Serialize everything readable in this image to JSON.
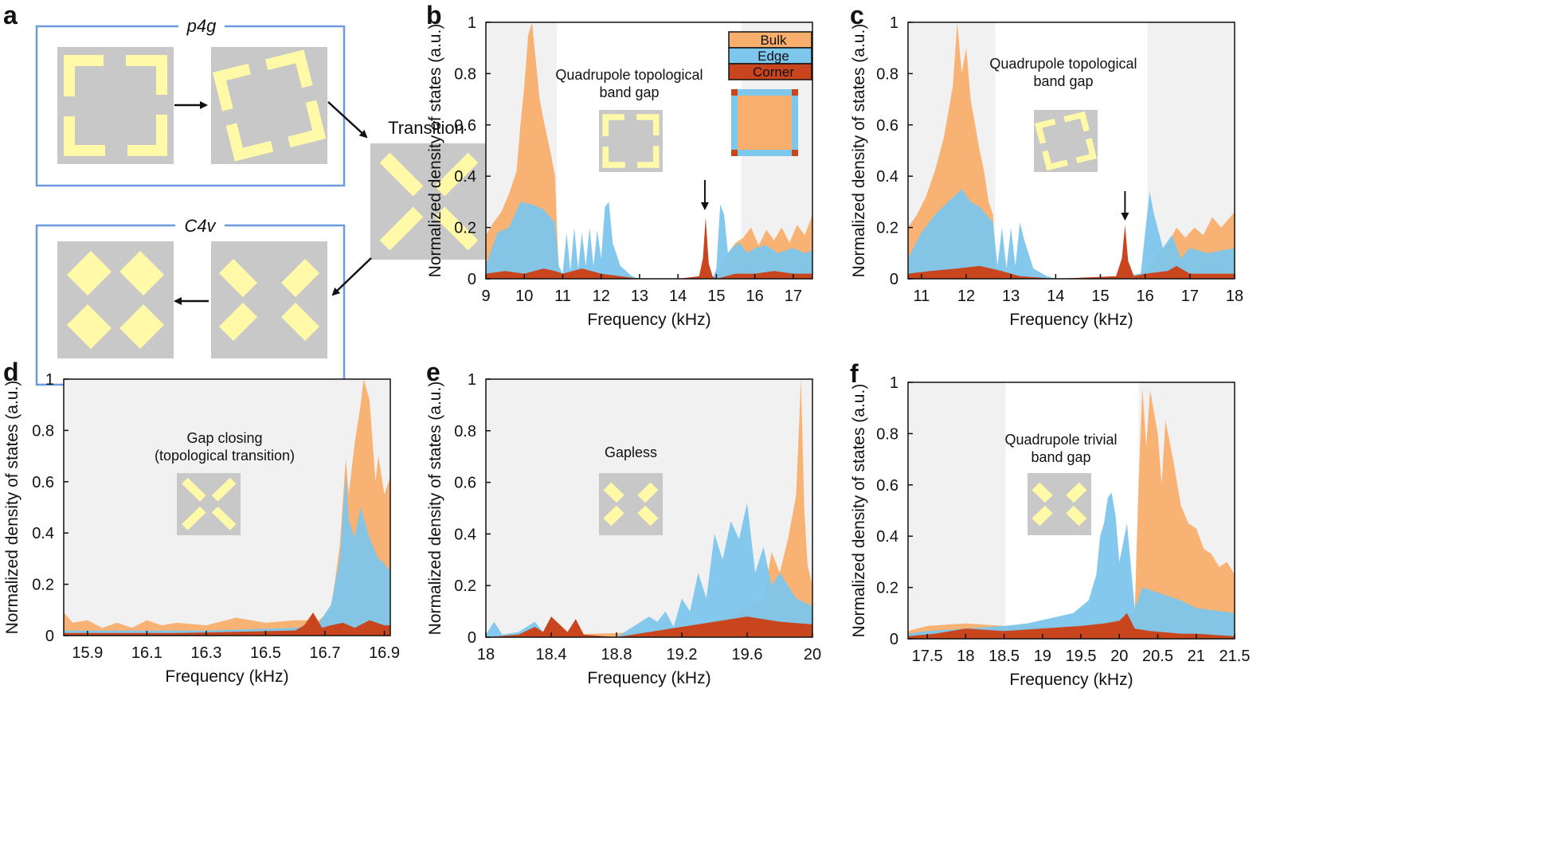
{
  "colors": {
    "bulk": "#F8AE6C",
    "edge": "#7DC6EC",
    "corner": "#C9451E",
    "shade": "#F1F1F1",
    "cellbg": "#C8C8C8",
    "rod": "#FFF9A8",
    "frame": "#6B9BE0",
    "shadeDark": "#E6E6E6"
  },
  "panel_a": {
    "letter": "a",
    "top_group_label": "p4g",
    "bottom_group_label": "C4v",
    "transition_label": "Transition"
  },
  "chart_data": [
    {
      "panel": "b",
      "type": "area",
      "xlabel": "Frequency (kHz)",
      "ylabel": "Normalized density of states (a.u.)",
      "xlim": [
        9,
        17.5
      ],
      "ylim": [
        0,
        1
      ],
      "xticks": [
        "9",
        "10",
        "11",
        "12",
        "13",
        "14",
        "15",
        "16",
        "17"
      ],
      "yticks": [
        "0",
        "0.2",
        "0.4",
        "0.6",
        "0.8",
        "1"
      ],
      "shaded": [
        [
          9,
          10.85
        ],
        [
          15.65,
          17.5
        ]
      ],
      "annotation": [
        "Quadrupole topological",
        "band gap"
      ],
      "legend": [
        "Bulk",
        "Edge",
        "Corner"
      ],
      "arrow_x": 14.7,
      "series": [
        {
          "name": "Bulk",
          "x": [
            9,
            9.2,
            9.4,
            9.6,
            9.8,
            9.9,
            10,
            10.1,
            10.2,
            10.3,
            10.4,
            10.5,
            10.6,
            10.7,
            10.8,
            10.85,
            10.9,
            11,
            12,
            13,
            14,
            15,
            15.3,
            15.5,
            15.7,
            15.9,
            16.1,
            16.3,
            16.5,
            16.7,
            16.9,
            17.1,
            17.3,
            17.5
          ],
          "values": [
            0.17,
            0.22,
            0.26,
            0.33,
            0.42,
            0.6,
            0.75,
            0.95,
            1.0,
            0.85,
            0.7,
            0.62,
            0.55,
            0.48,
            0.4,
            0.2,
            0.03,
            0,
            0,
            0,
            0,
            0,
            0.1,
            0.14,
            0.16,
            0.2,
            0.13,
            0.19,
            0.15,
            0.2,
            0.14,
            0.21,
            0.17,
            0.25
          ]
        },
        {
          "name": "Edge",
          "x": [
            9,
            9.3,
            9.6,
            9.9,
            10.2,
            10.5,
            10.8,
            10.9,
            11,
            11.1,
            11.2,
            11.3,
            11.4,
            11.5,
            11.6,
            11.7,
            11.8,
            11.9,
            12,
            12.1,
            12.2,
            12.3,
            12.5,
            12.8,
            13,
            14,
            14.9,
            15.0,
            15.1,
            15.2,
            15.3,
            15.4,
            15.6,
            15.8,
            16,
            16.3,
            16.6,
            17,
            17.3,
            17.5
          ],
          "values": [
            0.05,
            0.18,
            0.2,
            0.3,
            0.29,
            0.27,
            0.22,
            0.05,
            0.02,
            0.18,
            0.03,
            0.2,
            0.04,
            0.18,
            0.05,
            0.2,
            0.05,
            0.19,
            0.08,
            0.28,
            0.3,
            0.14,
            0.05,
            0.01,
            0,
            0,
            0,
            0.04,
            0.29,
            0.25,
            0.1,
            0.12,
            0.14,
            0.1,
            0.12,
            0.13,
            0.1,
            0.12,
            0.1,
            0.11
          ]
        },
        {
          "name": "Corner",
          "x": [
            9,
            9.5,
            10,
            10.5,
            10.8,
            11,
            11.5,
            12,
            12.5,
            13,
            14,
            14.55,
            14.65,
            14.72,
            14.8,
            14.9,
            15,
            15.5,
            16,
            16.5,
            17,
            17.5
          ],
          "values": [
            0.02,
            0.03,
            0.02,
            0.04,
            0.03,
            0.02,
            0.04,
            0.02,
            0.01,
            0,
            0,
            0.01,
            0.08,
            0.24,
            0.06,
            0.01,
            0,
            0.02,
            0.02,
            0.03,
            0.02,
            0.02
          ]
        }
      ]
    },
    {
      "panel": "c",
      "type": "area",
      "xlabel": "Frequency (kHz)",
      "ylabel": "Normalized density of states (a.u.)",
      "xlim": [
        10.7,
        18
      ],
      "ylim": [
        0,
        1
      ],
      "xticks": [
        "11",
        "12",
        "13",
        "14",
        "15",
        "16",
        "17",
        "18"
      ],
      "yticks": [
        "0",
        "0.2",
        "0.4",
        "0.6",
        "0.8",
        "1"
      ],
      "shaded": [
        [
          10.7,
          12.65
        ],
        [
          16.05,
          18
        ]
      ],
      "annotation": [
        "Quadrupole topological",
        "band gap"
      ],
      "arrow_x": 15.55,
      "series": [
        {
          "name": "Bulk",
          "x": [
            10.7,
            10.9,
            11.1,
            11.3,
            11.5,
            11.7,
            11.8,
            11.9,
            12,
            12.1,
            12.2,
            12.3,
            12.4,
            12.5,
            12.6,
            12.65,
            12.7,
            13,
            14,
            15,
            16,
            16.3,
            16.5,
            16.7,
            16.9,
            17.1,
            17.3,
            17.5,
            17.7,
            18
          ],
          "values": [
            0.2,
            0.25,
            0.32,
            0.42,
            0.55,
            0.75,
            1.0,
            0.8,
            0.9,
            0.7,
            0.6,
            0.5,
            0.42,
            0.3,
            0.25,
            0.05,
            0.02,
            0,
            0,
            0,
            0,
            0.1,
            0.13,
            0.2,
            0.16,
            0.2,
            0.17,
            0.24,
            0.2,
            0.26
          ]
        },
        {
          "name": "Edge",
          "x": [
            10.7,
            11,
            11.3,
            11.6,
            11.9,
            12.1,
            12.3,
            12.6,
            12.7,
            12.8,
            12.9,
            13,
            13.1,
            13.2,
            13.3,
            13.5,
            13.8,
            14,
            15,
            15.9,
            16.1,
            16.2,
            16.4,
            16.6,
            16.8,
            17,
            17.4,
            17.7,
            18
          ],
          "values": [
            0.08,
            0.18,
            0.25,
            0.3,
            0.35,
            0.3,
            0.28,
            0.22,
            0.05,
            0.2,
            0.04,
            0.2,
            0.05,
            0.22,
            0.15,
            0.04,
            0.01,
            0,
            0,
            0.02,
            0.34,
            0.25,
            0.12,
            0.17,
            0.08,
            0.12,
            0.1,
            0.11,
            0.12
          ]
        },
        {
          "name": "Corner",
          "x": [
            10.7,
            11.2,
            11.8,
            12.3,
            12.8,
            13.2,
            14,
            15.35,
            15.48,
            15.55,
            15.62,
            15.75,
            16,
            16.5,
            16.7,
            17,
            17.5,
            18
          ],
          "values": [
            0.02,
            0.03,
            0.04,
            0.05,
            0.03,
            0.01,
            0,
            0.01,
            0.08,
            0.21,
            0.07,
            0.01,
            0.02,
            0.03,
            0.05,
            0.02,
            0.02,
            0.02
          ]
        }
      ]
    },
    {
      "panel": "d",
      "type": "area",
      "xlabel": "Frequency (kHz)",
      "ylabel": "Normalized density of states (a.u.)",
      "xlim": [
        15.82,
        16.92
      ],
      "ylim": [
        0,
        1
      ],
      "xticks": [
        "15.9",
        "16.1",
        "16.3",
        "16.5",
        "16.7",
        "16.9"
      ],
      "yticks": [
        "0",
        "0.2",
        "0.4",
        "0.6",
        "0.8",
        "1"
      ],
      "shaded": [
        [
          15.82,
          16.92
        ]
      ],
      "annotation": [
        "Gap closing",
        "(topological transition)"
      ],
      "series": [
        {
          "name": "Bulk",
          "x": [
            15.82,
            15.85,
            15.9,
            15.95,
            16.0,
            16.05,
            16.1,
            16.15,
            16.2,
            16.3,
            16.4,
            16.5,
            16.6,
            16.68,
            16.72,
            16.75,
            16.77,
            16.78,
            16.8,
            16.82,
            16.83,
            16.85,
            16.87,
            16.88,
            16.9,
            16.92
          ],
          "values": [
            0.09,
            0.05,
            0.06,
            0.03,
            0.05,
            0.03,
            0.06,
            0.04,
            0.05,
            0.04,
            0.07,
            0.05,
            0.06,
            0.06,
            0.1,
            0.35,
            0.69,
            0.55,
            0.75,
            0.9,
            1.0,
            0.92,
            0.6,
            0.7,
            0.55,
            0.62
          ]
        },
        {
          "name": "Edge",
          "x": [
            15.82,
            16.3,
            16.6,
            16.68,
            16.72,
            16.75,
            16.77,
            16.78,
            16.8,
            16.82,
            16.85,
            16.88,
            16.9,
            16.92
          ],
          "values": [
            0.02,
            0.02,
            0.03,
            0.05,
            0.12,
            0.3,
            0.63,
            0.45,
            0.38,
            0.5,
            0.38,
            0.3,
            0.28,
            0.25
          ]
        },
        {
          "name": "Corner",
          "x": [
            15.82,
            16.2,
            16.6,
            16.63,
            16.66,
            16.69,
            16.72,
            16.76,
            16.8,
            16.85,
            16.9,
            16.92
          ],
          "values": [
            0.01,
            0.01,
            0.02,
            0.04,
            0.09,
            0.03,
            0.04,
            0.05,
            0.03,
            0.06,
            0.04,
            0.04
          ]
        }
      ]
    },
    {
      "panel": "e",
      "type": "area",
      "xlabel": "Frequency (kHz)",
      "ylabel": "Normalized density of states (a.u.)",
      "xlim": [
        18,
        20
      ],
      "ylim": [
        0,
        1
      ],
      "xticks": [
        "18",
        "18.4",
        "18.8",
        "19.2",
        "19.6",
        "20"
      ],
      "yticks": [
        "0",
        "0.2",
        "0.4",
        "0.6",
        "0.8",
        "1"
      ],
      "shaded": [
        [
          18,
          20
        ]
      ],
      "annotation": [
        "Gapless"
      ],
      "series": [
        {
          "name": "Bulk",
          "x": [
            18,
            18.5,
            19,
            19.3,
            19.5,
            19.7,
            19.75,
            19.8,
            19.85,
            19.9,
            19.93,
            19.95,
            19.97,
            20
          ],
          "values": [
            0,
            0.01,
            0.02,
            0.05,
            0.08,
            0.15,
            0.33,
            0.25,
            0.38,
            0.55,
            1.0,
            0.5,
            0.28,
            0.2
          ]
        },
        {
          "name": "Edge",
          "x": [
            18,
            18.05,
            18.1,
            18.2,
            18.3,
            18.35,
            18.4,
            18.5,
            18.55,
            18.6,
            18.8,
            18.9,
            19.0,
            19.05,
            19.1,
            19.15,
            19.2,
            19.25,
            19.3,
            19.35,
            19.4,
            19.45,
            19.5,
            19.55,
            19.6,
            19.65,
            19.7,
            19.75,
            19.8,
            19.9,
            20
          ],
          "values": [
            0.01,
            0.06,
            0.01,
            0.02,
            0.06,
            0.02,
            0.08,
            0.02,
            0.05,
            0.01,
            0,
            0.04,
            0.08,
            0.06,
            0.1,
            0.04,
            0.15,
            0.1,
            0.25,
            0.15,
            0.4,
            0.3,
            0.45,
            0.38,
            0.52,
            0.25,
            0.35,
            0.2,
            0.25,
            0.15,
            0.12
          ]
        },
        {
          "name": "Corner",
          "x": [
            18,
            18.2,
            18.3,
            18.35,
            18.4,
            18.5,
            18.55,
            18.6,
            18.8,
            19,
            19.2,
            19.4,
            19.6,
            19.8,
            20
          ],
          "values": [
            0,
            0.01,
            0.04,
            0.02,
            0.08,
            0.02,
            0.07,
            0.01,
            0,
            0.02,
            0.04,
            0.06,
            0.08,
            0.06,
            0.05
          ]
        }
      ]
    },
    {
      "panel": "f",
      "type": "area",
      "xlabel": "Frequency (kHz)",
      "ylabel": "Normalized density of states (a.u.)",
      "xlim": [
        17.25,
        21.5
      ],
      "ylim": [
        0,
        1
      ],
      "xticks": [
        "17.5",
        "18",
        "18.5",
        "19",
        "19.5",
        "20",
        "20.5",
        "21",
        "21.5"
      ],
      "yticks": [
        "0",
        "0.2",
        "0.4",
        "0.6",
        "0.8",
        "1"
      ],
      "shaded": [
        [
          17.25,
          18.52
        ],
        [
          20.25,
          21.5
        ]
      ],
      "annotation": [
        "Quadrupole trivial",
        "band gap"
      ],
      "series": [
        {
          "name": "Bulk",
          "x": [
            17.25,
            17.5,
            18,
            18.5,
            19,
            19.5,
            20,
            20.2,
            20.25,
            20.3,
            20.35,
            20.4,
            20.5,
            20.55,
            20.6,
            20.7,
            20.8,
            20.9,
            21,
            21.1,
            21.2,
            21.3,
            21.4,
            21.5
          ],
          "values": [
            0.03,
            0.05,
            0.06,
            0.05,
            0.05,
            0.05,
            0.08,
            0.1,
            0.6,
            0.98,
            0.75,
            0.97,
            0.8,
            0.6,
            0.85,
            0.7,
            0.52,
            0.45,
            0.43,
            0.35,
            0.33,
            0.28,
            0.3,
            0.25
          ]
        },
        {
          "name": "Edge",
          "x": [
            17.25,
            17.5,
            18,
            18.5,
            18.8,
            19.1,
            19.4,
            19.6,
            19.7,
            19.75,
            19.8,
            19.85,
            19.9,
            19.95,
            20.0,
            20.1,
            20.2,
            20.3,
            20.5,
            20.8,
            21,
            21.5
          ],
          "values": [
            0.02,
            0.03,
            0.04,
            0.05,
            0.06,
            0.08,
            0.1,
            0.15,
            0.25,
            0.4,
            0.45,
            0.55,
            0.57,
            0.48,
            0.3,
            0.45,
            0.12,
            0.2,
            0.18,
            0.15,
            0.12,
            0.1
          ]
        },
        {
          "name": "Corner",
          "x": [
            17.25,
            17.6,
            18,
            18.5,
            19,
            19.5,
            19.8,
            20,
            20.1,
            20.2,
            20.4,
            20.8,
            21,
            21.5
          ],
          "values": [
            0.01,
            0.02,
            0.04,
            0.03,
            0.04,
            0.05,
            0.06,
            0.07,
            0.1,
            0.04,
            0.03,
            0.02,
            0.02,
            0.01
          ]
        }
      ]
    }
  ]
}
